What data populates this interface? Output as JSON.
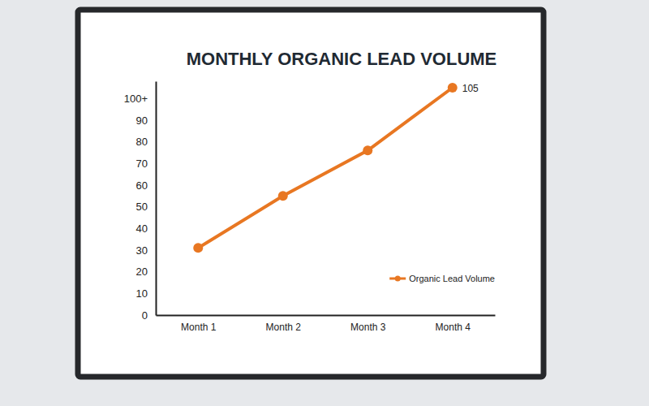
{
  "chart_data": {
    "type": "line",
    "title": "MONTHLY ORGANIC LEAD VOLUME",
    "categories": [
      "Month 1",
      "Month 2",
      "Month 3",
      "Month 4"
    ],
    "series": [
      {
        "name": "Organic Lead Volume",
        "color": "#e87722",
        "marker": "circle",
        "values": [
          31,
          55,
          76,
          105
        ]
      }
    ],
    "ylim": [
      0,
      108
    ],
    "yticks": [
      0,
      10,
      20,
      30,
      40,
      50,
      60,
      70,
      80,
      90,
      {
        "value": 100,
        "label": "100+"
      }
    ],
    "annotations": [
      "105"
    ],
    "grid": false,
    "legend": "lower right"
  }
}
